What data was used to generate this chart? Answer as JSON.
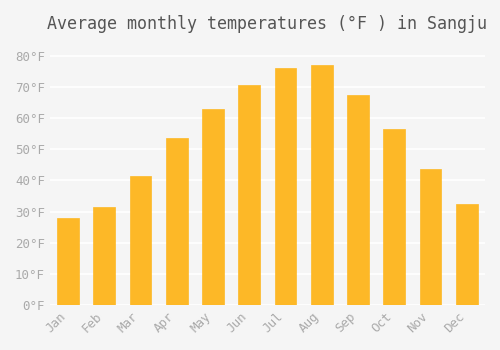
{
  "title": "Average monthly temperatures (°F ) in Sangju",
  "months": [
    "Jan",
    "Feb",
    "Mar",
    "Apr",
    "May",
    "Jun",
    "Jul",
    "Aug",
    "Sep",
    "Oct",
    "Nov",
    "Dec"
  ],
  "values": [
    28,
    31.5,
    41.5,
    53.5,
    63,
    70.5,
    76,
    77,
    67.5,
    56.5,
    43.5,
    32.5
  ],
  "bar_color": "#FDB827",
  "bar_edge_color": "#F5A623",
  "background_color": "#f5f5f5",
  "grid_color": "#ffffff",
  "yticks": [
    0,
    10,
    20,
    30,
    40,
    50,
    60,
    70,
    80
  ],
  "ylim": [
    0,
    85
  ],
  "title_fontsize": 12,
  "tick_fontsize": 9,
  "font_color": "#aaaaaa"
}
